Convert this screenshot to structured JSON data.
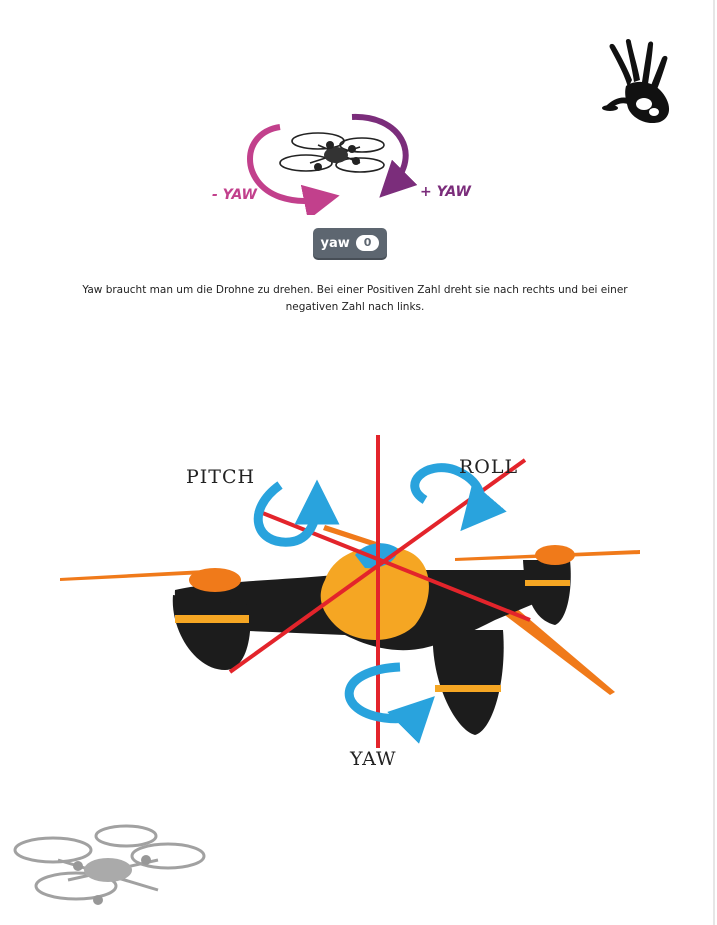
{
  "top_figure": {
    "minus_yaw": "- YAW",
    "plus_yaw": "+ YAW",
    "minus_color": "#c2408c",
    "plus_color": "#7b2d7b"
  },
  "block": {
    "name": "yaw",
    "value": "0",
    "color": "#5d6670"
  },
  "caption": "Yaw braucht man um die Drohne zu drehen. Bei einer Positiven Zahl dreht sie nach rechts und bei einer negativen Zahl nach links.",
  "axes_figure": {
    "pitch": "PITCH",
    "roll": "ROLL",
    "yaw": "YAW",
    "arrow_color": "#29a3dd",
    "axis_color": "#e3242b",
    "body_color": "#1c1c1c",
    "accent_color": "#f5a623",
    "propeller_color": "#f07a1a"
  },
  "icons": {
    "top_right": "handprint-logo-icon",
    "bottom_left": "quadcopter-icon"
  }
}
